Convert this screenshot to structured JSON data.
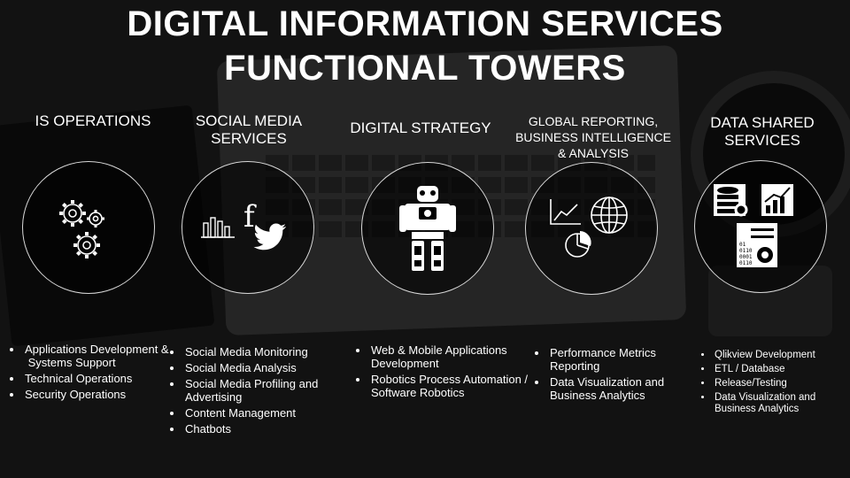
{
  "title": {
    "line1": "DIGITAL INFORMATION SERVICES",
    "line2": "FUNCTIONAL TOWERS"
  },
  "towers": [
    {
      "name": "IS OPERATIONS",
      "icon": "gears-icon",
      "items": [
        "Applications Development &",
        " Systems Support",
        "Technical Operations",
        "Security Operations"
      ]
    },
    {
      "name_line1": "SOCIAL MEDIA",
      "name_line2": "SERVICES",
      "icon": "social-media-icon",
      "items": [
        "Social Media Monitoring",
        "Social Media Analysis",
        "Social Media Profiling and Advertising",
        "Content Management",
        "Chatbots"
      ]
    },
    {
      "name": "DIGITAL STRATEGY",
      "icon": "robot-icon",
      "items": [
        "Web & Mobile Applications Development",
        "Robotics Process Automation / Software Robotics"
      ]
    },
    {
      "name_line1": "GLOBAL REPORTING,",
      "name_line2": "BUSINESS INTELLIGENCE",
      "name_line3": "& ANALYSIS",
      "icon": "analytics-globe-icon",
      "items": [
        "Performance Metrics Reporting",
        "Data Visualization and Business Analytics"
      ]
    },
    {
      "name_line1": "DATA SHARED",
      "name_line2": "SERVICES",
      "icon": "data-services-icon",
      "items": [
        "Qlikview Development",
        "ETL / Database",
        "Release/Testing",
        "Data Visualization and Business Analytics"
      ]
    }
  ],
  "icon_text": {
    "facebook": "f",
    "binary_lines": [
      "01",
      "0110",
      "0001",
      "0110"
    ]
  }
}
